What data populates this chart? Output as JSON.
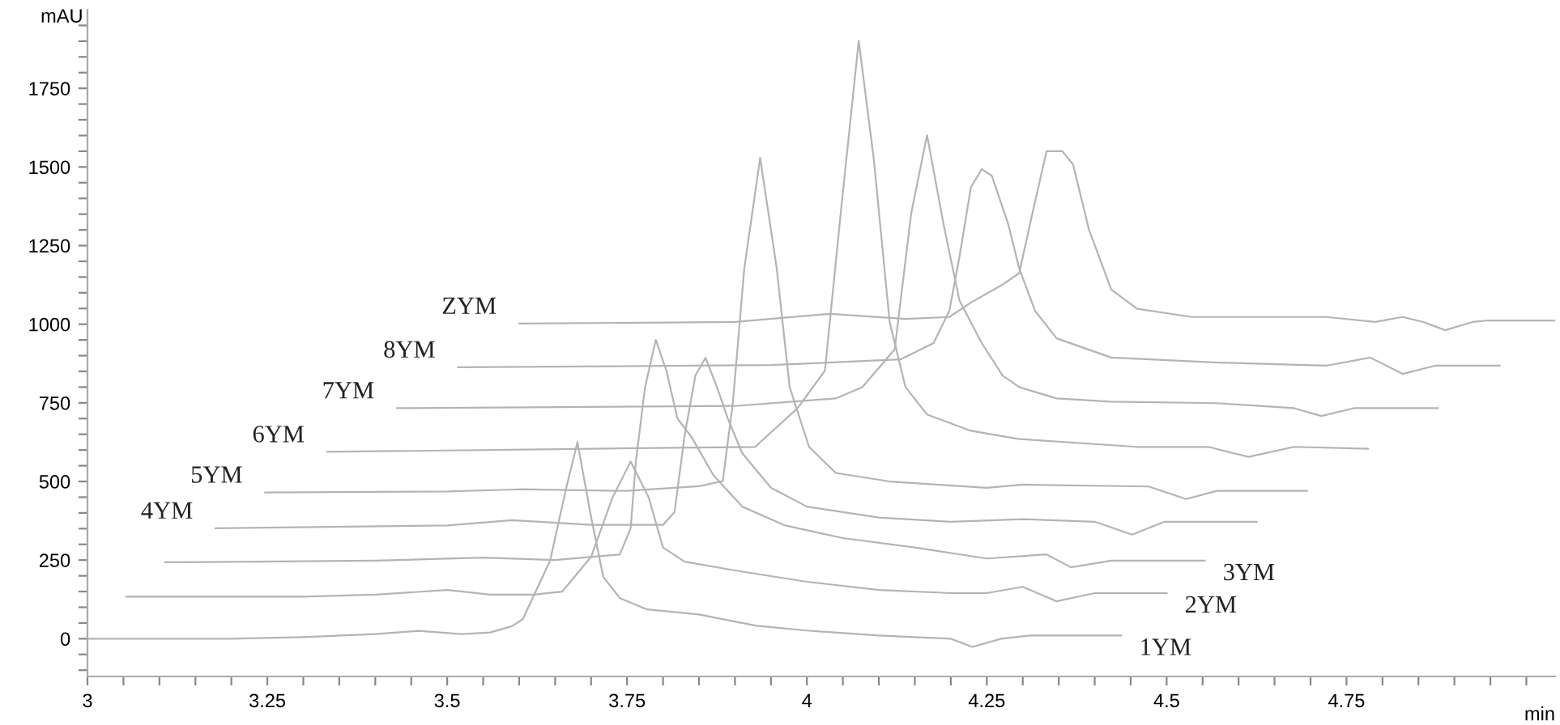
{
  "chart_data": {
    "type": "line",
    "xlabel": "min",
    "ylabel": "mAU",
    "xlim": [
      3,
      5.04
    ],
    "ylim": [
      -120,
      2000
    ],
    "grid": false,
    "legend": false,
    "marker": "none",
    "line_style": "solid",
    "xticks": [
      3,
      3.25,
      3.5,
      3.75,
      4,
      4.25,
      4.5,
      4.75,
      {
        "value": 5,
        "label": null
      },
      {
        "value": 3.05,
        "label": null
      },
      {
        "value": 3.1,
        "label": null
      },
      {
        "value": 3.15,
        "label": null
      },
      {
        "value": 3.2,
        "label": null
      },
      {
        "value": 3.3,
        "label": null
      },
      {
        "value": 3.35,
        "label": null
      },
      {
        "value": 3.4,
        "label": null
      },
      {
        "value": 3.45,
        "label": null
      },
      {
        "value": 3.55,
        "label": null
      },
      {
        "value": 3.6,
        "label": null
      },
      {
        "value": 3.65,
        "label": null
      },
      {
        "value": 3.7,
        "label": null
      },
      {
        "value": 3.8,
        "label": null
      },
      {
        "value": 3.85,
        "label": null
      },
      {
        "value": 3.9,
        "label": null
      },
      {
        "value": 3.95,
        "label": null
      },
      {
        "value": 4.05,
        "label": null
      },
      {
        "value": 4.1,
        "label": null
      },
      {
        "value": 4.15,
        "label": null
      },
      {
        "value": 4.2,
        "label": null
      },
      {
        "value": 4.3,
        "label": null
      },
      {
        "value": 4.35,
        "label": null
      },
      {
        "value": 4.4,
        "label": null
      },
      {
        "value": 4.45,
        "label": null
      },
      {
        "value": 4.55,
        "label": null
      },
      {
        "value": 4.6,
        "label": null
      },
      {
        "value": 4.65,
        "label": null
      },
      {
        "value": 4.7,
        "label": null
      },
      {
        "value": 4.8,
        "label": null
      },
      {
        "value": 4.85,
        "label": null
      },
      {
        "value": 4.9,
        "label": null
      },
      {
        "value": 4.95,
        "label": null
      }
    ],
    "yticks": [
      0,
      250,
      500,
      750,
      1000,
      1250,
      1500,
      1750,
      {
        "value": -100,
        "label": null
      },
      {
        "value": -50,
        "label": null
      },
      {
        "value": 50,
        "label": null
      },
      {
        "value": 100,
        "label": null
      },
      {
        "value": 150,
        "label": null
      },
      {
        "value": 200,
        "label": null
      },
      {
        "value": 300,
        "label": null
      },
      {
        "value": 350,
        "label": null
      },
      {
        "value": 400,
        "label": null
      },
      {
        "value": 450,
        "label": null
      },
      {
        "value": 550,
        "label": null
      },
      {
        "value": 600,
        "label": null
      },
      {
        "value": 650,
        "label": null
      },
      {
        "value": 700,
        "label": null
      },
      {
        "value": 800,
        "label": null
      },
      {
        "value": 850,
        "label": null
      },
      {
        "value": 900,
        "label": null
      },
      {
        "value": 950,
        "label": null
      },
      {
        "value": 1050,
        "label": null
      },
      {
        "value": 1100,
        "label": null
      },
      {
        "value": 1150,
        "label": null
      },
      {
        "value": 1200,
        "label": null
      },
      {
        "value": 1300,
        "label": null
      },
      {
        "value": 1350,
        "label": null
      },
      {
        "value": 1400,
        "label": null
      },
      {
        "value": 1450,
        "label": null
      },
      {
        "value": 1550,
        "label": null
      },
      {
        "value": 1600,
        "label": null
      },
      {
        "value": 1650,
        "label": null
      },
      {
        "value": 1700,
        "label": null
      },
      {
        "value": 1800,
        "label": null
      },
      {
        "value": 1850,
        "label": null
      },
      {
        "value": 1900,
        "label": null
      },
      {
        "value": 1950,
        "label": null
      }
    ],
    "series": [
      {
        "name": "1YM",
        "color": "#b4b4b4",
        "x": [
          3.0,
          3.2,
          3.3,
          3.4,
          3.46,
          3.52,
          3.56,
          3.59,
          3.605,
          3.643,
          3.665,
          3.681,
          3.7,
          3.717,
          3.74,
          3.778,
          3.85,
          3.93,
          4.0,
          4.1,
          4.2,
          4.23,
          4.27,
          4.31,
          4.437
        ],
        "values": [
          0,
          0,
          5,
          15,
          25,
          15,
          20,
          40,
          62,
          248,
          475,
          625,
          387,
          196,
          129,
          93,
          77,
          41,
          26,
          10,
          0,
          -26,
          0,
          10,
          10
        ]
      },
      {
        "name": "2YM",
        "color": "#b4b4b4",
        "x": [
          3.054,
          3.3,
          3.4,
          3.5,
          3.56,
          3.62,
          3.66,
          3.7,
          3.73,
          3.755,
          3.78,
          3.8,
          3.83,
          3.9,
          4.0,
          4.1,
          4.2,
          4.25,
          4.3,
          4.347,
          4.4,
          4.5
        ],
        "values": [
          134,
          134,
          140,
          155,
          140,
          140,
          150,
          260,
          450,
          563,
          450,
          290,
          245,
          217,
          181,
          155,
          145,
          145,
          165,
          119,
          145,
          145
        ]
      },
      {
        "name": "3YM",
        "color": "#b4b4b4",
        "x": [
          3.108,
          3.4,
          3.55,
          3.65,
          3.74,
          3.755,
          3.762,
          3.775,
          3.79,
          3.805,
          3.82,
          3.84,
          3.87,
          3.91,
          3.97,
          4.05,
          4.15,
          4.25,
          4.333,
          4.367,
          4.423,
          4.553
        ],
        "values": [
          243,
          248,
          258,
          250,
          268,
          351,
          558,
          800,
          950,
          850,
          700,
          640,
          520,
          420,
          360,
          320,
          290,
          255,
          268,
          227,
          248,
          248
        ]
      },
      {
        "name": "4YM",
        "color": "#b4b4b4",
        "x": [
          3.178,
          3.5,
          3.59,
          3.7,
          3.8,
          3.816,
          3.83,
          3.845,
          3.859,
          3.875,
          3.89,
          3.91,
          3.95,
          4.0,
          4.1,
          4.2,
          4.3,
          4.4,
          4.452,
          4.497,
          4.625
        ],
        "values": [
          351,
          360,
          377,
          362,
          362,
          403,
          646,
          837,
          893,
          800,
          700,
          590,
          480,
          420,
          385,
          372,
          380,
          372,
          331,
          372,
          372
        ]
      },
      {
        "name": "5YM",
        "color": "#b4b4b4",
        "x": [
          3.247,
          3.5,
          3.6,
          3.75,
          3.85,
          3.883,
          3.897,
          3.913,
          3.935,
          3.958,
          3.976,
          4.003,
          4.04,
          4.115,
          4.25,
          4.3,
          4.475,
          4.527,
          4.57,
          4.695
        ],
        "values": [
          465,
          468,
          475,
          470,
          485,
          501,
          749,
          1178,
          1529,
          1178,
          800,
          610,
          527,
          500,
          480,
          490,
          484,
          444,
          470,
          470
        ]
      },
      {
        "name": "6YM",
        "color": "#b4b4b4",
        "x": [
          3.333,
          3.7,
          3.928,
          3.987,
          4.025,
          4.047,
          4.072,
          4.093,
          4.115,
          4.137,
          4.167,
          4.228,
          4.295,
          4.459,
          4.558,
          4.614,
          4.677,
          4.78
        ],
        "values": [
          594,
          604,
          610,
          733,
          852,
          1353,
          1901,
          1524,
          1007,
          800,
          713,
          661,
          635,
          610,
          610,
          578,
          610,
          604
        ]
      },
      {
        "name": "7YM",
        "color": "#b4b4b4",
        "x": [
          3.43,
          3.9,
          4.04,
          4.077,
          4.122,
          4.145,
          4.167,
          4.19,
          4.212,
          4.243,
          4.272,
          4.295,
          4.347,
          4.422,
          4.57,
          4.677,
          4.715,
          4.76,
          4.877
        ],
        "values": [
          733,
          740,
          764,
          800,
          920,
          1353,
          1601,
          1317,
          1076,
          940,
          837,
          800,
          764,
          754,
          749,
          733,
          708,
          733,
          733
        ]
      },
      {
        "name": "8YM",
        "color": "#b4b4b4",
        "x": [
          3.515,
          3.95,
          4.13,
          4.176,
          4.198,
          4.212,
          4.228,
          4.243,
          4.257,
          4.28,
          4.295,
          4.317,
          4.347,
          4.423,
          4.572,
          4.722,
          4.783,
          4.828,
          4.873,
          4.963
        ],
        "values": [
          863,
          870,
          888,
          940,
          1043,
          1214,
          1436,
          1493,
          1472,
          1317,
          1178,
          1043,
          955,
          894,
          878,
          868,
          894,
          842,
          868,
          868
        ]
      },
      {
        "name": "ZYM",
        "color": "#b4b4b4",
        "x": [
          3.6,
          3.9,
          4.032,
          4.137,
          4.198,
          4.228,
          4.272,
          4.295,
          4.31,
          4.333,
          4.355,
          4.37,
          4.392,
          4.423,
          4.459,
          4.535,
          4.722,
          4.79,
          4.828,
          4.857,
          4.887,
          4.925,
          4.947,
          5.04
        ],
        "values": [
          1002,
          1007,
          1033,
          1017,
          1023,
          1069,
          1126,
          1162,
          1317,
          1550,
          1550,
          1508,
          1301,
          1110,
          1049,
          1023,
          1023,
          1007,
          1023,
          1007,
          981,
          1007,
          1012,
          1012
        ]
      }
    ]
  }
}
